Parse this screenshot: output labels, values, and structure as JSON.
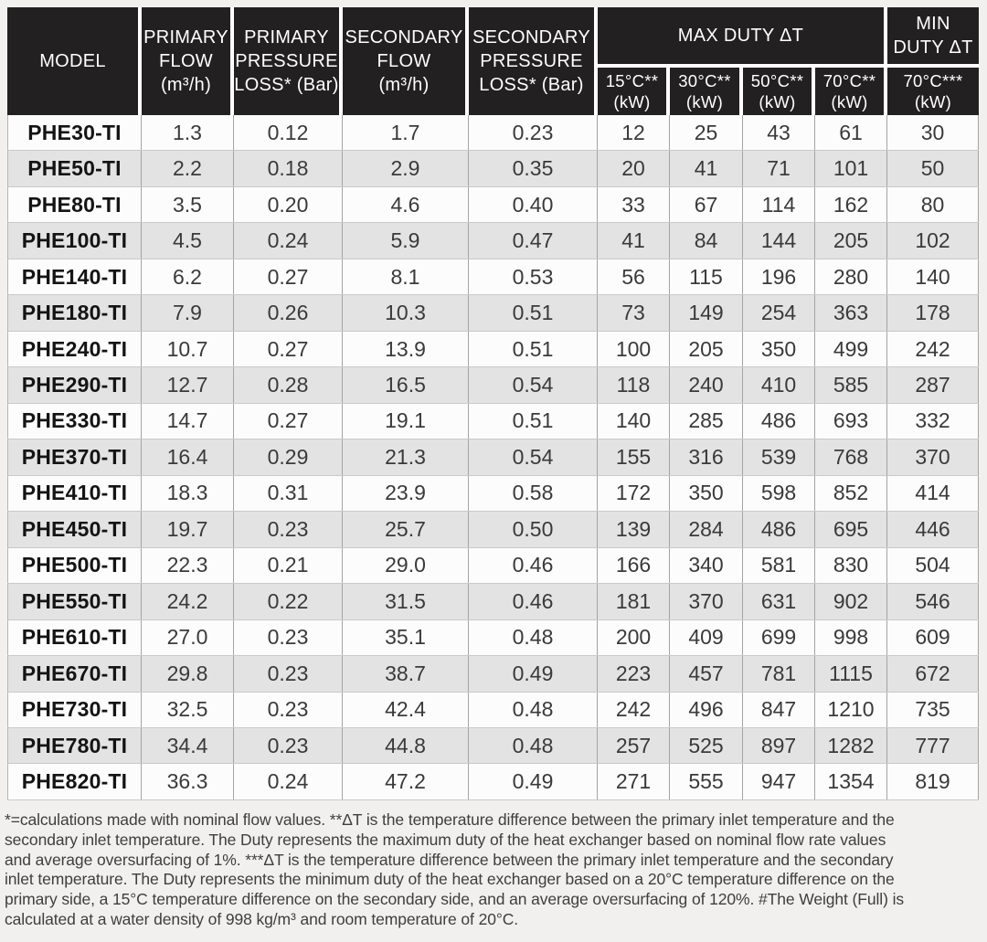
{
  "colors": {
    "page_bg": "#f1f0ef",
    "header_bg": "#232021",
    "header_text": "#ffffff",
    "row_bg": "#fcfcfc",
    "row_alt_bg": "#e4e3e3",
    "border_vertical": "#a4a4a4",
    "border_horizontal": "#c9c9c9",
    "body_text": "#3a3a3a",
    "model_text": "#141414",
    "footnote_text": "#3e3e3e"
  },
  "table": {
    "columns": [
      {
        "id": "model",
        "lines": [
          "MODEL"
        ]
      },
      {
        "id": "primary_flow",
        "lines": [
          "PRIMARY",
          "FLOW",
          "(m³/h)"
        ]
      },
      {
        "id": "primary_pressure_loss",
        "lines": [
          "PRIMARY",
          "PRESSURE",
          "LOSS* (Bar)"
        ]
      },
      {
        "id": "secondary_flow",
        "lines": [
          "SECONDARY",
          "FLOW",
          "(m³/h)"
        ]
      },
      {
        "id": "secondary_pressure_loss",
        "lines": [
          "SECONDARY",
          "PRESSURE",
          "LOSS* (Bar)"
        ]
      }
    ],
    "groups": {
      "max_duty": {
        "label": "MAX DUTY ΔT"
      },
      "min_duty": {
        "lines": [
          "MIN",
          "DUTY ΔT"
        ]
      }
    },
    "sub_headers": [
      {
        "temp": "15°C**",
        "unit": "(kW)"
      },
      {
        "temp": "30°C**",
        "unit": "(kW)"
      },
      {
        "temp": "50°C**",
        "unit": "(kW)"
      },
      {
        "temp": "70°C**",
        "unit": "(kW)"
      },
      {
        "temp": "70°C***",
        "unit": "(kW)"
      }
    ],
    "rows": [
      [
        "PHE30-TI",
        "1.3",
        "0.12",
        "1.7",
        "0.23",
        "12",
        "25",
        "43",
        "61",
        "30"
      ],
      [
        "PHE50-TI",
        "2.2",
        "0.18",
        "2.9",
        "0.35",
        "20",
        "41",
        "71",
        "101",
        "50"
      ],
      [
        "PHE80-TI",
        "3.5",
        "0.20",
        "4.6",
        "0.40",
        "33",
        "67",
        "114",
        "162",
        "80"
      ],
      [
        "PHE100-TI",
        "4.5",
        "0.24",
        "5.9",
        "0.47",
        "41",
        "84",
        "144",
        "205",
        "102"
      ],
      [
        "PHE140-TI",
        "6.2",
        "0.27",
        "8.1",
        "0.53",
        "56",
        "115",
        "196",
        "280",
        "140"
      ],
      [
        "PHE180-TI",
        "7.9",
        "0.26",
        "10.3",
        "0.51",
        "73",
        "149",
        "254",
        "363",
        "178"
      ],
      [
        "PHE240-TI",
        "10.7",
        "0.27",
        "13.9",
        "0.51",
        "100",
        "205",
        "350",
        "499",
        "242"
      ],
      [
        "PHE290-TI",
        "12.7",
        "0.28",
        "16.5",
        "0.54",
        "118",
        "240",
        "410",
        "585",
        "287"
      ],
      [
        "PHE330-TI",
        "14.7",
        "0.27",
        "19.1",
        "0.51",
        "140",
        "285",
        "486",
        "693",
        "332"
      ],
      [
        "PHE370-TI",
        "16.4",
        "0.29",
        "21.3",
        "0.54",
        "155",
        "316",
        "539",
        "768",
        "370"
      ],
      [
        "PHE410-TI",
        "18.3",
        "0.31",
        "23.9",
        "0.58",
        "172",
        "350",
        "598",
        "852",
        "414"
      ],
      [
        "PHE450-TI",
        "19.7",
        "0.23",
        "25.7",
        "0.50",
        "139",
        "284",
        "486",
        "695",
        "446"
      ],
      [
        "PHE500-TI",
        "22.3",
        "0.21",
        "29.0",
        "0.46",
        "166",
        "340",
        "581",
        "830",
        "504"
      ],
      [
        "PHE550-TI",
        "24.2",
        "0.22",
        "31.5",
        "0.46",
        "181",
        "370",
        "631",
        "902",
        "546"
      ],
      [
        "PHE610-TI",
        "27.0",
        "0.23",
        "35.1",
        "0.48",
        "200",
        "409",
        "699",
        "998",
        "609"
      ],
      [
        "PHE670-TI",
        "29.8",
        "0.23",
        "38.7",
        "0.49",
        "223",
        "457",
        "781",
        "1115",
        "672"
      ],
      [
        "PHE730-TI",
        "32.5",
        "0.23",
        "42.4",
        "0.48",
        "242",
        "496",
        "847",
        "1210",
        "735"
      ],
      [
        "PHE780-TI",
        "34.4",
        "0.23",
        "44.8",
        "0.48",
        "257",
        "525",
        "897",
        "1282",
        "777"
      ],
      [
        "PHE820-TI",
        "36.3",
        "0.24",
        "47.2",
        "0.49",
        "271",
        "555",
        "947",
        "1354",
        "819"
      ]
    ]
  },
  "footnote": {
    "lines": [
      "*=calculations made with nominal flow values. **ΔT is the temperature difference between the primary inlet temperature and the",
      "secondary inlet temperature. The Duty represents the maximum duty of the heat exchanger based on nominal flow rate values",
      "and average oversurfacing of 1%. ***ΔT is the temperature difference between the primary inlet temperature and the secondary",
      "inlet temperature. The Duty represents the minimum duty of the heat exchanger based on a 20°C temperature difference on the",
      "primary side, a 15°C temperature difference on the secondary side, and an average oversurfacing of 120%. #The Weight (Full) is",
      "calculated at a water density of 998 kg/m³ and room temperature of 20°C."
    ]
  }
}
